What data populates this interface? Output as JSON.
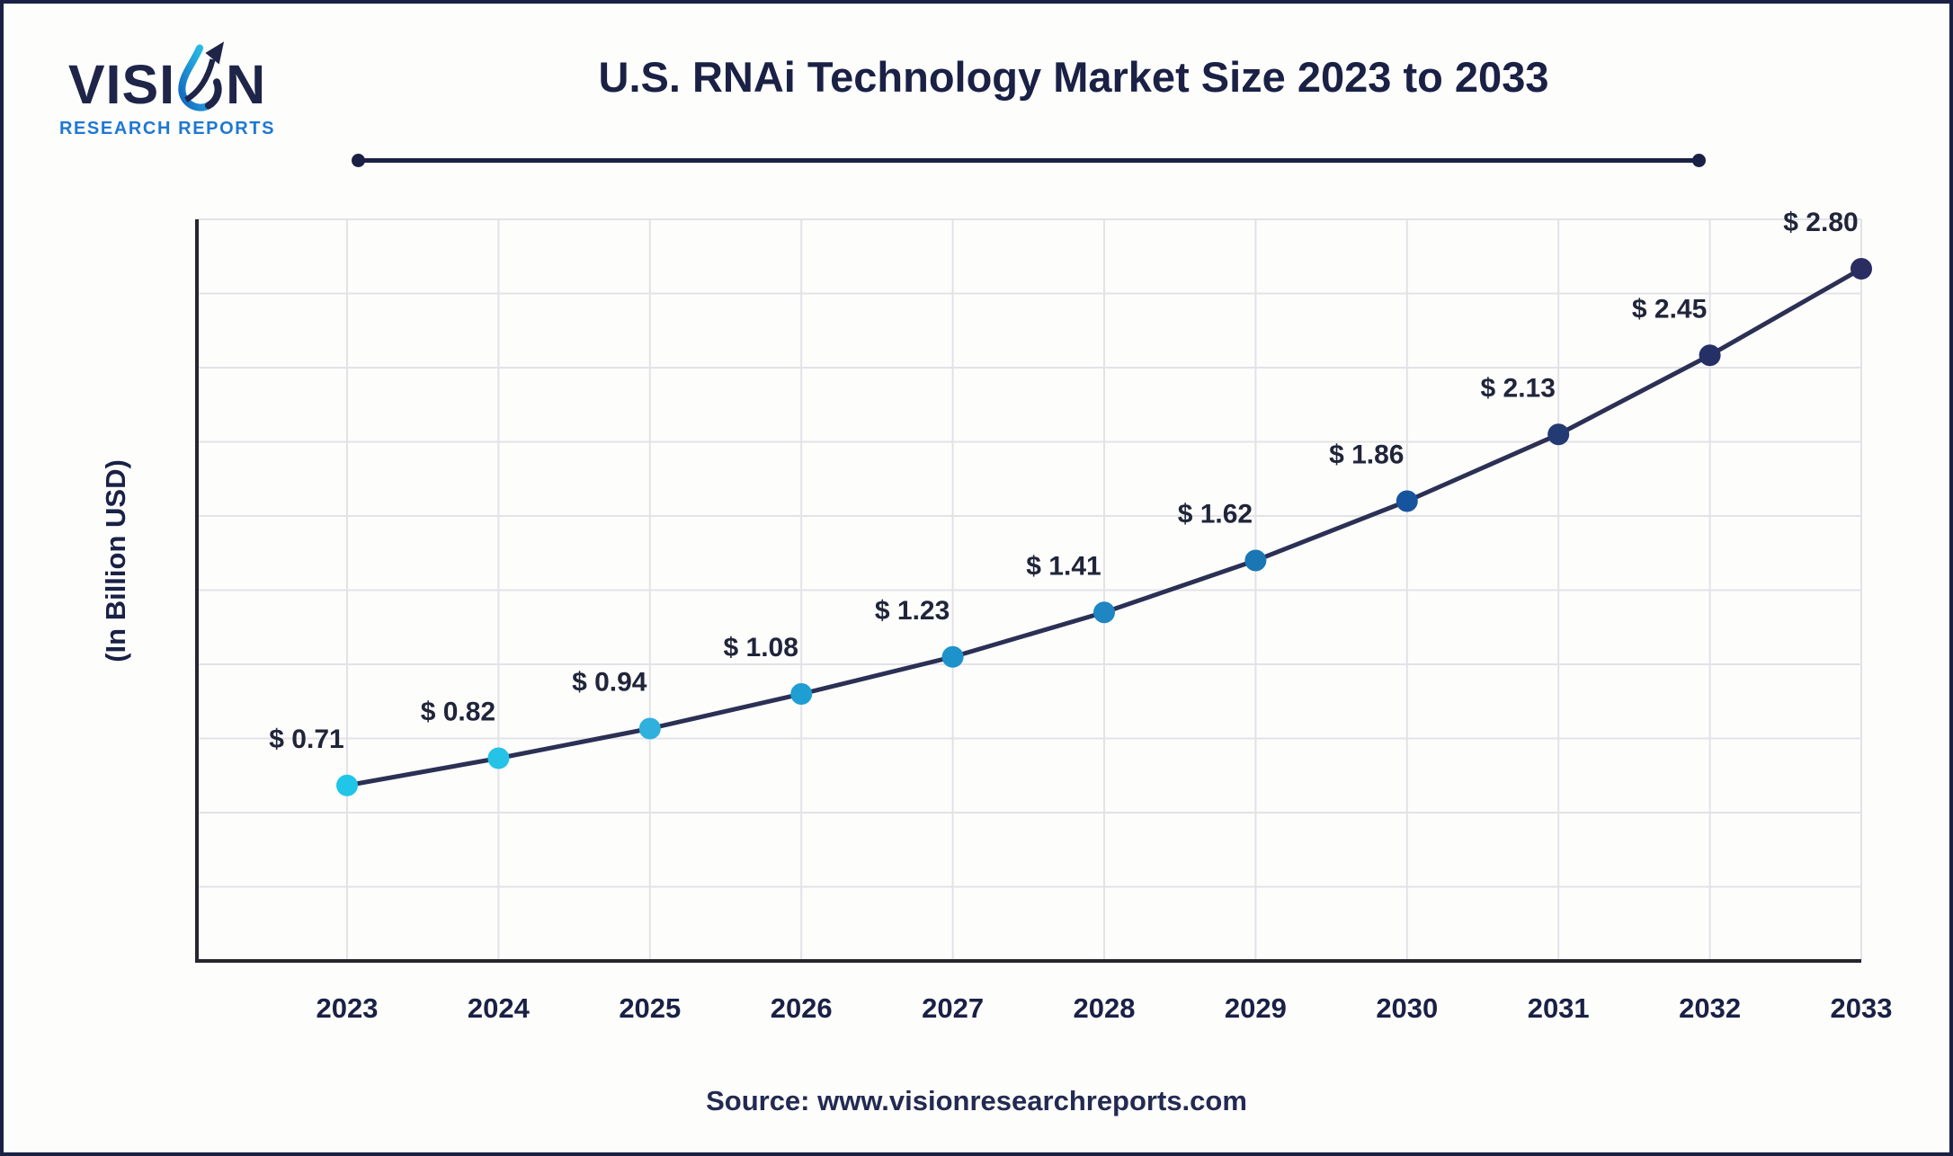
{
  "brand": {
    "logo_text_start": "VISI",
    "logo_text_end": "N",
    "icon": "droplet-arrow-icon",
    "tagline": "RESEARCH REPORTS",
    "navy": "#1e2549",
    "accent_blue": "#1f78d2",
    "accent_cyan": "#29c8ea"
  },
  "header": {
    "title": "U.S. RNAi Technology Market Size 2023 to 2033"
  },
  "chart_data": {
    "type": "line",
    "title": "U.S. RNAi Technology Market Size 2023 to 2033",
    "xlabel": "",
    "ylabel": "(In Billion USD)",
    "x": [
      "2023",
      "2024",
      "2025",
      "2026",
      "2027",
      "2028",
      "2029",
      "2030",
      "2031",
      "2032",
      "2033"
    ],
    "values": [
      0.71,
      0.82,
      0.94,
      1.08,
      1.23,
      1.41,
      1.62,
      1.86,
      2.13,
      2.45,
      2.8
    ],
    "labels": [
      "$ 0.71",
      "$ 0.82",
      "$ 0.94",
      "$ 1.08",
      "$ 1.23",
      "$ 1.41",
      "$ 1.62",
      "$ 1.86",
      "$ 2.13",
      "$ 2.45",
      "$ 2.80"
    ],
    "ylim": [
      0,
      3.0
    ],
    "grid": true,
    "legend": "none",
    "line_color": "#2b3054",
    "grid_color": "#e2e2e8",
    "axis_color": "#26262e",
    "point_colors": [
      "#20c6e8",
      "#25c3e6",
      "#2fb0dd",
      "#1f9ed3",
      "#1e93cb",
      "#1e86c1",
      "#1a77b3",
      "#17549e",
      "#233a72",
      "#253067",
      "#2a2c62"
    ]
  },
  "footer": {
    "source": "Source: www.visionresearchreports.com"
  }
}
